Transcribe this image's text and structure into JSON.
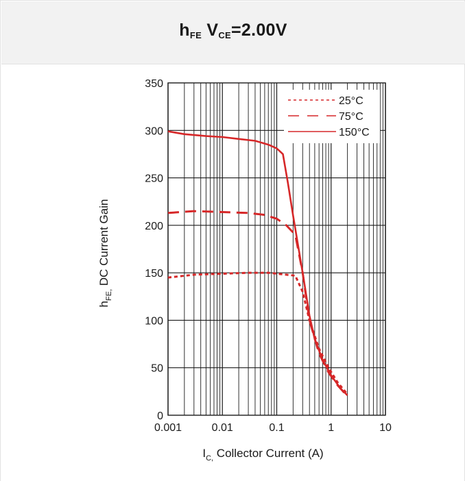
{
  "chart_data": {
    "type": "line",
    "title": {
      "main": "h",
      "main_sub": "FE",
      "space": " ",
      "cond": "V",
      "cond_sub": "CE",
      "cond_value": "=2.00V"
    },
    "xlabel": {
      "main": "I",
      "sub": "C,",
      "rest": " Collector Current (A)"
    },
    "ylabel": {
      "main": "h",
      "sub": "FE,",
      "rest": " DC Current Gain"
    },
    "x_scale": "log",
    "xlim": [
      0.001,
      10
    ],
    "ylim": [
      0,
      350
    ],
    "x_ticks": [
      "0.001",
      "0.01",
      "0.1",
      "1",
      "10"
    ],
    "y_ticks": [
      "0",
      "50",
      "100",
      "150",
      "200",
      "250",
      "300",
      "350"
    ],
    "grid": true,
    "legend_position": "top-right",
    "series": [
      {
        "name": "25°C",
        "style": "dotted",
        "x": [
          0.001,
          0.003,
          0.01,
          0.03,
          0.07,
          0.15,
          0.22,
          0.3,
          0.4,
          0.6,
          0.9,
          1.3,
          2.0
        ],
        "y": [
          145,
          148,
          149,
          150,
          150,
          148,
          147,
          130,
          100,
          70,
          50,
          35,
          22
        ]
      },
      {
        "name": "75°C",
        "style": "dashed",
        "x": [
          0.001,
          0.003,
          0.01,
          0.03,
          0.06,
          0.1,
          0.15,
          0.22,
          0.3,
          0.4,
          0.6,
          0.9,
          1.3,
          2.0
        ],
        "y": [
          213,
          215,
          214,
          213,
          211,
          207,
          200,
          190,
          150,
          100,
          65,
          45,
          32,
          20
        ]
      },
      {
        "name": "150°C",
        "style": "solid",
        "x": [
          0.001,
          0.002,
          0.005,
          0.01,
          0.02,
          0.04,
          0.07,
          0.1,
          0.13,
          0.16,
          0.2,
          0.3,
          0.4,
          0.5,
          0.7,
          1.0,
          1.5,
          2.0
        ],
        "y": [
          299,
          296,
          294,
          293,
          291,
          289,
          285,
          281,
          275,
          245,
          210,
          150,
          105,
          80,
          58,
          42,
          28,
          21
        ]
      }
    ],
    "colors": {
      "line": "#d62728",
      "grid": "#1a1a1a",
      "text": "#1a1a1a",
      "header_bg": "#f2f2f2"
    }
  }
}
